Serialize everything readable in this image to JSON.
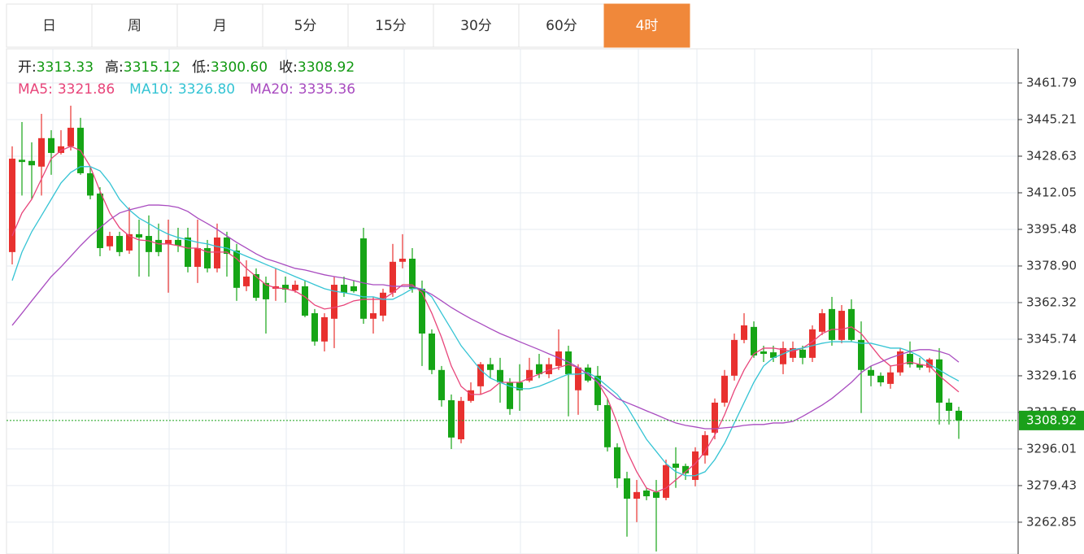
{
  "tabs": [
    {
      "label": "日"
    },
    {
      "label": "周"
    },
    {
      "label": "月"
    },
    {
      "label": "5分"
    },
    {
      "label": "15分"
    },
    {
      "label": "30分"
    },
    {
      "label": "60分"
    },
    {
      "label": "4时",
      "active": true
    }
  ],
  "chart_data": {
    "type": "candlestick",
    "header": [
      {
        "label": "开:",
        "value": 3313.33
      },
      {
        "label": "高:",
        "value": 3315.12
      },
      {
        "label": "低:",
        "value": 3300.6,
        "value_label": "3300.60"
      },
      {
        "label": "收:",
        "value": 3308.92
      }
    ],
    "header_color": "#119911",
    "up_color": "#e8312f",
    "down_color": "#16a516",
    "open": [
      3385.2,
      3427.0,
      3426.5,
      3423.9,
      3436.8,
      3430.1,
      3433.1,
      3441.5,
      3420.9,
      3411.7,
      3387.8,
      3392.5,
      3385.9,
      3393.3,
      3392.5,
      3390.7,
      3388.9,
      3390.7,
      3391.8,
      3378.5,
      3387.0,
      3377.8,
      3391.8,
      3385.9,
      3369.7,
      3375.2,
      3371.2,
      3368.6,
      3370.4,
      3367.9,
      3369.7,
      3357.5,
      3344.7,
      3355.0,
      3370.4,
      3369.7,
      3391.4,
      3355.0,
      3356.4,
      3366.8,
      3380.8,
      3382.2,
      3368.6,
      3348.3,
      3331.8,
      3318.1,
      3300.4,
      3317.8,
      3324.4,
      3334.4,
      3331.8,
      3326.2,
      3326.2,
      3327.0,
      3334.4,
      3329.9,
      3333.6,
      3340.2,
      3322.6,
      3332.9,
      3329.2,
      3315.9,
      3296.8,
      3282.7,
      3273.5,
      3277.2,
      3276.5,
      3273.9,
      3289.4,
      3288.3,
      3282.0,
      3293.1,
      3303.4,
      3317.0,
      3329.2,
      3345.4,
      3351.3,
      3340.2,
      3339.8,
      3334.4,
      3337.3,
      3341.0,
      3337.3,
      3349.1,
      3359.4,
      3345.4,
      3359.4,
      3345.4,
      3331.8,
      3329.2,
      3325.5,
      3330.7,
      3339.1,
      3334.4,
      3332.9,
      3336.6,
      3317.0,
      3313.33
    ],
    "high": [
      3433.1,
      3444.1,
      3434.9,
      3447.8,
      3440.4,
      3440.4,
      3451.5,
      3446.0,
      3423.9,
      3414.6,
      3394.4,
      3394.4,
      3405.4,
      3399.9,
      3401.8,
      3398.1,
      3399.9,
      3396.2,
      3396.2,
      3399.9,
      3390.7,
      3398.1,
      3394.4,
      3388.9,
      3381.5,
      3377.8,
      3374.1,
      3377.8,
      3374.1,
      3372.3,
      3372.3,
      3359.4,
      3357.5,
      3374.1,
      3374.1,
      3372.3,
      3396.2,
      3364.9,
      3368.6,
      3388.9,
      3393.3,
      3387.0,
      3372.3,
      3350.2,
      3333.6,
      3320.7,
      3319.6,
      3326.2,
      3335.4,
      3337.3,
      3337.3,
      3328.1,
      3334.4,
      3337.3,
      3339.1,
      3337.3,
      3350.2,
      3342.8,
      3334.4,
      3334.4,
      3333.6,
      3318.9,
      3298.6,
      3285.7,
      3282.0,
      3278.4,
      3282.0,
      3291.2,
      3296.8,
      3289.4,
      3296.8,
      3304.1,
      3318.9,
      3331.8,
      3348.3,
      3357.5,
      3353.8,
      3342.8,
      3342.8,
      3344.7,
      3344.7,
      3342.8,
      3352.0,
      3359.4,
      3364.9,
      3361.2,
      3363.8,
      3353.8,
      3333.6,
      3330.7,
      3333.6,
      3341.7,
      3344.7,
      3337.3,
      3337.3,
      3341.7,
      3318.9,
      3315.12
    ],
    "low": [
      3379.6,
      3410.8,
      3409.1,
      3410.8,
      3420.2,
      3429.4,
      3431.2,
      3420.2,
      3409.1,
      3383.3,
      3385.9,
      3383.3,
      3384.4,
      3374.1,
      3374.1,
      3383.3,
      3366.8,
      3385.2,
      3376.0,
      3371.2,
      3376.0,
      3376.0,
      3374.1,
      3363.1,
      3367.5,
      3363.1,
      3348.3,
      3363.1,
      3362.3,
      3366.8,
      3355.7,
      3342.8,
      3340.2,
      3341.7,
      3364.9,
      3366.8,
      3352.7,
      3348.3,
      3353.8,
      3364.9,
      3377.8,
      3366.8,
      3333.6,
      3329.9,
      3315.2,
      3296.0,
      3298.6,
      3317.0,
      3320.7,
      3328.1,
      3317.0,
      3311.5,
      3313.3,
      3326.2,
      3328.1,
      3328.1,
      3331.8,
      3310.8,
      3311.5,
      3326.2,
      3313.3,
      3294.9,
      3278.4,
      3256.3,
      3262.9,
      3272.8,
      3249.6,
      3272.8,
      3278.4,
      3282.0,
      3279.1,
      3289.4,
      3300.4,
      3315.2,
      3327.0,
      3343.9,
      3337.3,
      3335.4,
      3335.4,
      3329.9,
      3335.4,
      3334.4,
      3335.4,
      3347.6,
      3342.8,
      3343.9,
      3344.7,
      3312.3,
      3324.4,
      3324.4,
      3323.3,
      3329.2,
      3332.9,
      3331.8,
      3330.7,
      3307.1,
      3307.1,
      3300.6
    ],
    "close": [
      3427.5,
      3426.0,
      3424.5,
      3436.8,
      3430.1,
      3433.1,
      3441.5,
      3420.9,
      3410.8,
      3387.0,
      3392.5,
      3385.2,
      3393.3,
      3391.8,
      3385.2,
      3385.2,
      3390.7,
      3388.1,
      3378.5,
      3387.0,
      3377.8,
      3391.8,
      3384.4,
      3369.0,
      3374.1,
      3364.5,
      3363.8,
      3369.7,
      3368.2,
      3370.4,
      3356.4,
      3344.7,
      3355.7,
      3370.4,
      3366.8,
      3367.5,
      3355.0,
      3357.5,
      3366.8,
      3380.8,
      3382.2,
      3368.6,
      3348.3,
      3331.8,
      3318.1,
      3301.2,
      3317.8,
      3322.6,
      3334.4,
      3331.8,
      3326.2,
      3314.1,
      3322.6,
      3331.8,
      3329.9,
      3334.4,
      3340.2,
      3329.9,
      3332.9,
      3327.0,
      3315.9,
      3296.8,
      3282.7,
      3273.5,
      3276.5,
      3274.6,
      3273.9,
      3288.7,
      3287.5,
      3285.0,
      3294.9,
      3302.3,
      3317.0,
      3329.2,
      3345.4,
      3352.0,
      3338.4,
      3339.1,
      3337.3,
      3341.7,
      3341.7,
      3337.3,
      3350.2,
      3357.5,
      3345.4,
      3358.6,
      3345.4,
      3331.8,
      3329.2,
      3326.2,
      3330.7,
      3340.2,
      3334.4,
      3332.9,
      3336.6,
      3317.0,
      3313.3,
      3308.92
    ],
    "series": [
      {
        "name": "MA5:",
        "color": "#e8457a",
        "current": 3321.86,
        "values": [
          3392.5,
          3402.9,
          3409.1,
          3418.3,
          3427.5,
          3431.2,
          3433.1,
          3431.2,
          3423.9,
          3412.8,
          3402.9,
          3396.2,
          3392.5,
          3390.7,
          3390.3,
          3388.9,
          3388.9,
          3388.1,
          3387.0,
          3387.0,
          3385.2,
          3385.2,
          3385.2,
          3382.2,
          3377.8,
          3374.1,
          3370.4,
          3369.0,
          3368.6,
          3367.5,
          3364.9,
          3361.2,
          3359.4,
          3360.1,
          3361.2,
          3363.1,
          3363.8,
          3363.8,
          3363.8,
          3366.8,
          3370.4,
          3370.4,
          3366.8,
          3357.5,
          3346.5,
          3333.6,
          3324.4,
          3320.7,
          3320.7,
          3322.5,
          3326.2,
          3326.2,
          3326.2,
          3328.1,
          3329.9,
          3331.8,
          3332.9,
          3334.3,
          3332.9,
          3329.9,
          3326.2,
          3318.9,
          3307.8,
          3294.9,
          3285.7,
          3278.3,
          3276.5,
          3278.3,
          3282.0,
          3285.7,
          3289.4,
          3294.9,
          3302.3,
          3311.5,
          3322.5,
          3331.8,
          3339.1,
          3341.7,
          3341.7,
          3341.0,
          3340.2,
          3341.7,
          3344.6,
          3348.3,
          3350.2,
          3350.2,
          3351.3,
          3348.3,
          3342.8,
          3337.3,
          3333.6,
          3334.3,
          3335.4,
          3334.3,
          3333.6,
          3329.2,
          3325.5,
          3321.86
        ]
      },
      {
        "name": "MA10:",
        "color": "#35c4d4",
        "current": 3326.8,
        "current_label": "3326.80",
        "values": [
          3372.3,
          3385.2,
          3394.4,
          3401.7,
          3409.1,
          3416.5,
          3421.3,
          3423.9,
          3423.9,
          3422.0,
          3416.5,
          3409.1,
          3404.3,
          3400.6,
          3398.1,
          3395.5,
          3393.3,
          3391.8,
          3390.7,
          3389.6,
          3388.9,
          3387.7,
          3387.0,
          3385.2,
          3383.3,
          3381.5,
          3379.6,
          3377.8,
          3376.0,
          3374.1,
          3372.3,
          3370.4,
          3368.6,
          3367.5,
          3366.8,
          3366.0,
          3364.9,
          3364.9,
          3363.8,
          3363.8,
          3366.0,
          3368.6,
          3368.6,
          3364.9,
          3357.5,
          3350.2,
          3342.8,
          3337.3,
          3331.8,
          3328.1,
          3326.2,
          3324.4,
          3323.3,
          3323.3,
          3324.4,
          3326.2,
          3328.1,
          3329.9,
          3329.9,
          3330.6,
          3328.1,
          3324.4,
          3320.7,
          3315.2,
          3307.8,
          3300.4,
          3294.9,
          3289.4,
          3285.7,
          3283.9,
          3283.9,
          3285.7,
          3291.2,
          3298.6,
          3307.8,
          3317.0,
          3326.2,
          3333.6,
          3337.3,
          3339.1,
          3341.0,
          3341.7,
          3342.8,
          3343.9,
          3344.6,
          3344.6,
          3344.6,
          3343.9,
          3343.9,
          3342.8,
          3341.7,
          3341.7,
          3340.2,
          3338.0,
          3334.3,
          3331.8,
          3329.2,
          3326.8
        ]
      },
      {
        "name": "MA20:",
        "color": "#a94cc0",
        "current": 3335.36,
        "values": [
          3352.0,
          3357.5,
          3363.1,
          3368.6,
          3374.1,
          3378.5,
          3383.3,
          3388.1,
          3392.5,
          3396.2,
          3399.9,
          3402.9,
          3404.3,
          3405.4,
          3406.5,
          3406.5,
          3406.2,
          3405.4,
          3403.6,
          3400.6,
          3398.1,
          3395.5,
          3392.5,
          3389.6,
          3387.0,
          3384.4,
          3382.2,
          3380.8,
          3379.3,
          3377.8,
          3377.1,
          3376.0,
          3374.9,
          3374.1,
          3373.4,
          3372.3,
          3371.2,
          3370.4,
          3370.4,
          3369.7,
          3369.7,
          3369.7,
          3368.2,
          3366.0,
          3363.1,
          3360.1,
          3357.5,
          3355.0,
          3352.8,
          3350.5,
          3348.3,
          3346.5,
          3344.6,
          3342.8,
          3341.0,
          3339.1,
          3337.3,
          3335.4,
          3332.9,
          3329.9,
          3326.2,
          3322.5,
          3318.9,
          3317.0,
          3315.2,
          3313.3,
          3311.5,
          3309.6,
          3307.8,
          3306.7,
          3306.0,
          3305.2,
          3305.2,
          3305.6,
          3306.0,
          3306.7,
          3307.1,
          3307.1,
          3307.8,
          3307.8,
          3308.5,
          3310.8,
          3313.3,
          3315.9,
          3318.9,
          3322.5,
          3326.2,
          3330.6,
          3333.6,
          3335.4,
          3337.3,
          3338.8,
          3340.2,
          3341.0,
          3341.0,
          3340.2,
          3338.8,
          3335.36
        ]
      }
    ],
    "last_price": 3308.92,
    "last_price_color": "#1aa01a",
    "ylim": [
      3248.45,
      3477.26
    ],
    "yticks": [
      3461.79,
      3445.21,
      3428.63,
      3412.05,
      3395.48,
      {
        "value": 3378.9,
        "label": "3378.90"
      },
      3362.32,
      3345.74,
      3329.16,
      3312.58,
      3296.01,
      3279.43,
      3262.85
    ],
    "grid": true
  }
}
